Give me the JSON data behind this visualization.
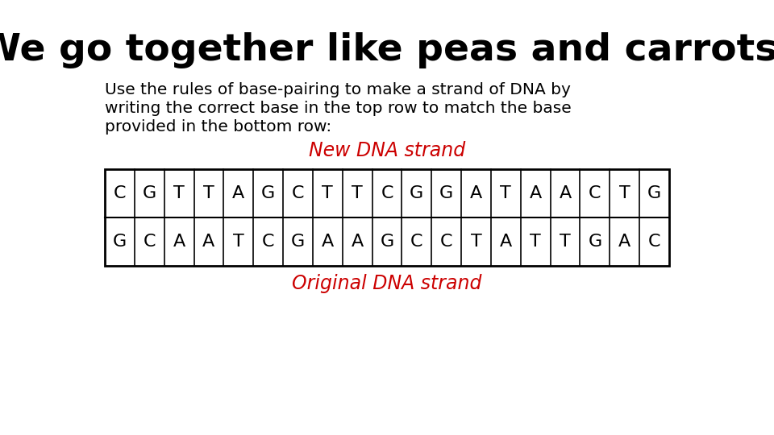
{
  "title": "We go together like peas and carrots!",
  "subtitle_line1": "Use the rules of base-pairing to make a strand of DNA by",
  "subtitle_line2": "writing the correct base in the top row to match the base",
  "subtitle_line3": "provided in the bottom row:",
  "new_label": "New DNA strand",
  "original_label": "Original DNA strand",
  "top_row": [
    "C",
    "G",
    "T",
    "T",
    "A",
    "G",
    "C",
    "T",
    "T",
    "C",
    "G",
    "G",
    "A",
    "T",
    "A",
    "A",
    "C",
    "T",
    "G"
  ],
  "bottom_row": [
    "G",
    "C",
    "A",
    "A",
    "T",
    "C",
    "G",
    "A",
    "A",
    "G",
    "C",
    "C",
    "T",
    "A",
    "T",
    "T",
    "G",
    "A",
    "C"
  ],
  "background_color": "#ffffff",
  "title_color": "#000000",
  "subtitle_color": "#000000",
  "label_color": "#cc0000",
  "cell_text_color": "#000000",
  "cell_border_color": "#000000",
  "title_fontsize": 34,
  "subtitle_fontsize": 14.5,
  "label_fontsize": 17,
  "cell_fontsize": 16
}
